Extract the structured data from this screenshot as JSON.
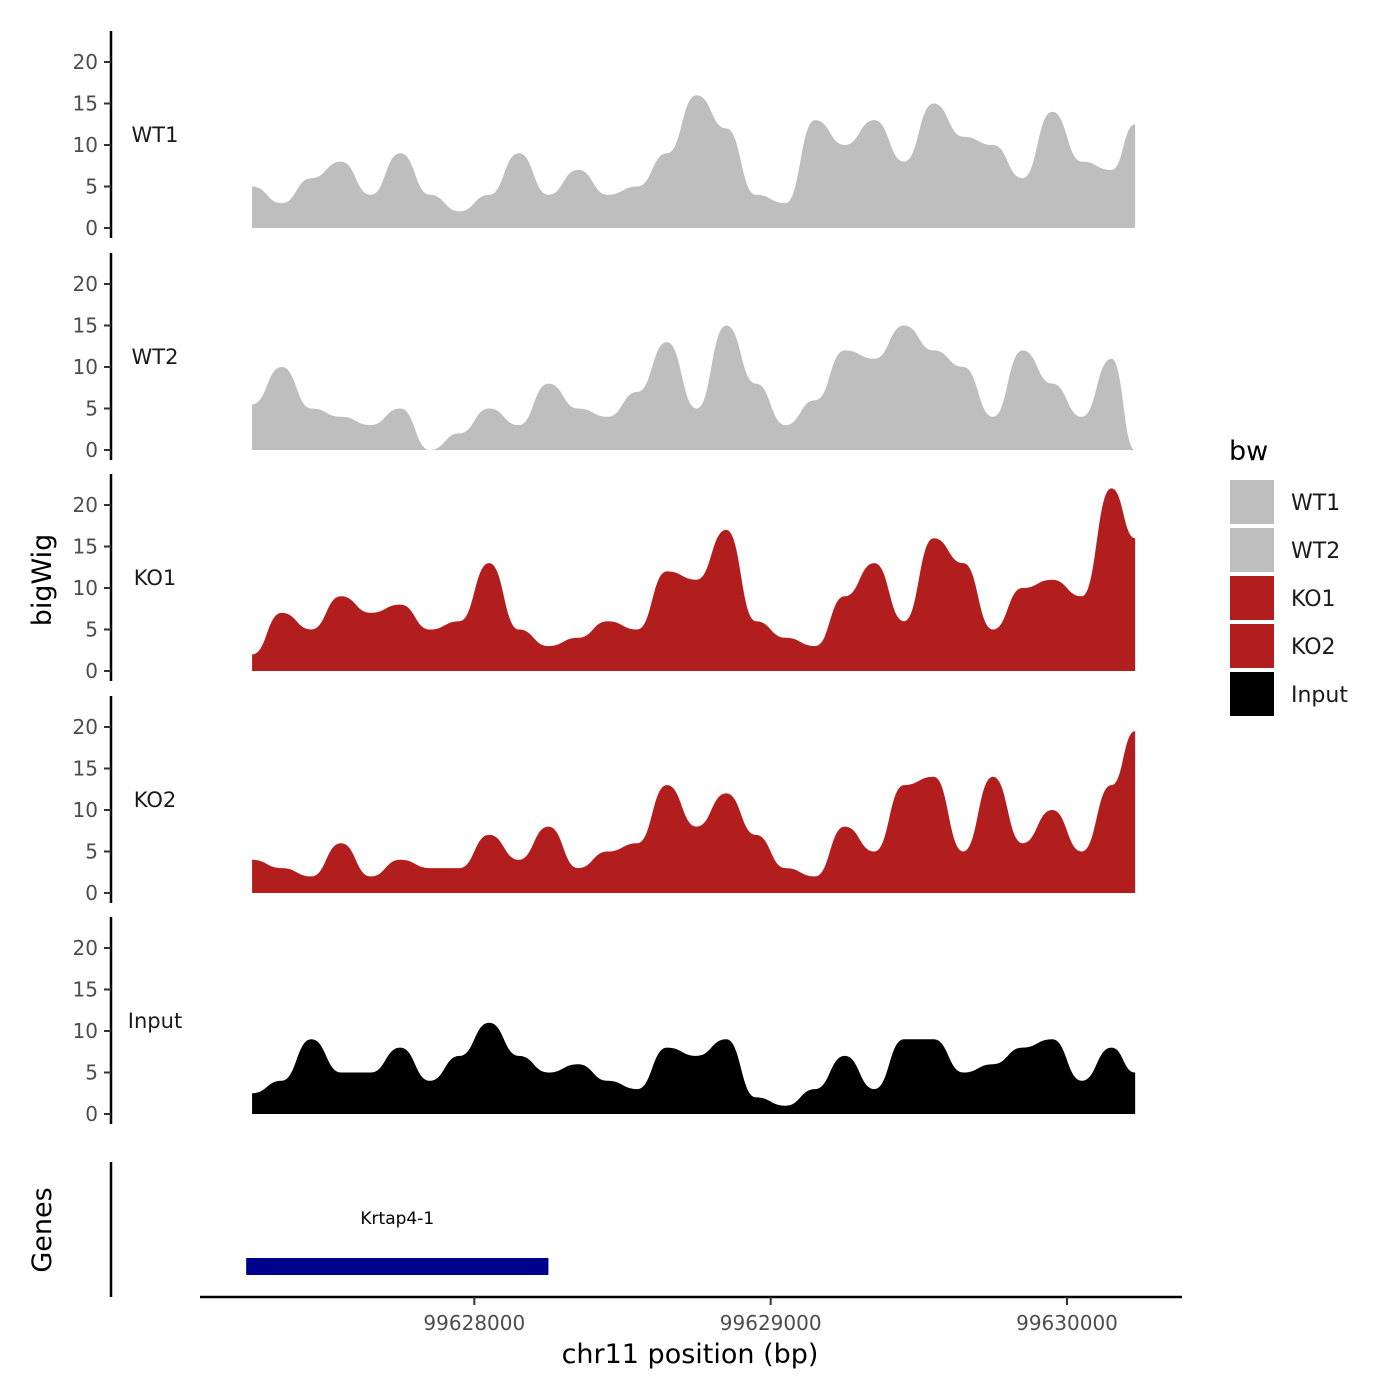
{
  "chart_data": {
    "type": "area",
    "title": "",
    "xlabel": "chr11 position (bp)",
    "ylabel": "bigWig",
    "genes_label": "Genes",
    "x_range": [
      99627250,
      99630230
    ],
    "x_ticks": [
      99628000,
      99629000,
      99630000
    ],
    "x_tick_labels": [
      "99628000",
      "99629000",
      "99630000"
    ],
    "ylim": [
      0,
      24
    ],
    "y_ticks": [
      0,
      5,
      10,
      15,
      20
    ],
    "y_tick_labels": [
      "0",
      "5",
      "10",
      "15",
      "20"
    ],
    "grid": false,
    "legend": {
      "title": "bw",
      "placement": "right",
      "entries": [
        {
          "label": "WT1",
          "color": "#bebebe"
        },
        {
          "label": "WT2",
          "color": "#bebebe"
        },
        {
          "label": "KO1",
          "color": "#b21e1e"
        },
        {
          "label": "KO2",
          "color": "#b21e1e"
        },
        {
          "label": "Input",
          "color": "#000000"
        }
      ]
    },
    "x": [
      99627250,
      99627350,
      99627450,
      99627550,
      99627650,
      99627750,
      99627850,
      99627950,
      99628050,
      99628150,
      99628250,
      99628350,
      99628450,
      99628550,
      99628650,
      99628750,
      99628850,
      99628950,
      99629050,
      99629150,
      99629250,
      99629350,
      99629450,
      99629550,
      99629650,
      99629750,
      99629850,
      99629950,
      99630050,
      99630150,
      99630230
    ],
    "series": [
      {
        "name": "WT1",
        "color": "#bebebe",
        "values": [
          5,
          3,
          6,
          8,
          4,
          9,
          4,
          2,
          4,
          9,
          4,
          7,
          4,
          5,
          9,
          16,
          12,
          4,
          3,
          13,
          10,
          13,
          8,
          15,
          11,
          10,
          6,
          14,
          8,
          7,
          12.5
        ]
      },
      {
        "name": "WT2",
        "color": "#bebebe",
        "values": [
          5.5,
          10,
          5,
          4,
          3,
          5,
          0,
          2,
          5,
          3,
          8,
          5,
          4,
          7,
          13,
          5,
          15,
          8,
          3,
          6,
          12,
          11,
          15,
          12,
          10,
          4,
          12,
          8,
          4,
          11,
          0
        ]
      },
      {
        "name": "KO1",
        "color": "#b21e1e",
        "values": [
          2,
          7,
          5,
          9,
          7,
          8,
          5,
          6,
          13,
          5,
          3,
          4,
          6,
          5,
          12,
          11,
          17,
          6,
          4,
          3,
          9,
          13,
          6,
          16,
          13,
          5,
          10,
          11,
          9,
          22,
          16
        ]
      },
      {
        "name": "KO2",
        "color": "#b21e1e",
        "values": [
          4,
          3,
          2,
          6,
          2,
          4,
          3,
          3,
          7,
          4,
          8,
          3,
          5,
          6,
          13,
          8,
          12,
          7,
          3,
          2,
          8,
          5,
          13,
          14,
          5,
          14,
          6,
          10,
          5,
          13,
          19.5
        ]
      },
      {
        "name": "Input",
        "color": "#000000",
        "values": [
          2.5,
          4,
          9,
          5,
          5,
          8,
          4,
          7,
          11,
          7,
          5,
          6,
          4,
          3,
          8,
          7,
          9,
          2,
          1,
          3,
          7,
          3,
          9,
          9,
          5,
          6,
          8,
          9,
          4,
          8,
          5
        ]
      }
    ],
    "genes": [
      {
        "name": "Krtap4-1",
        "start": 99627230,
        "end": 99628250,
        "color": "#00008b"
      }
    ]
  }
}
